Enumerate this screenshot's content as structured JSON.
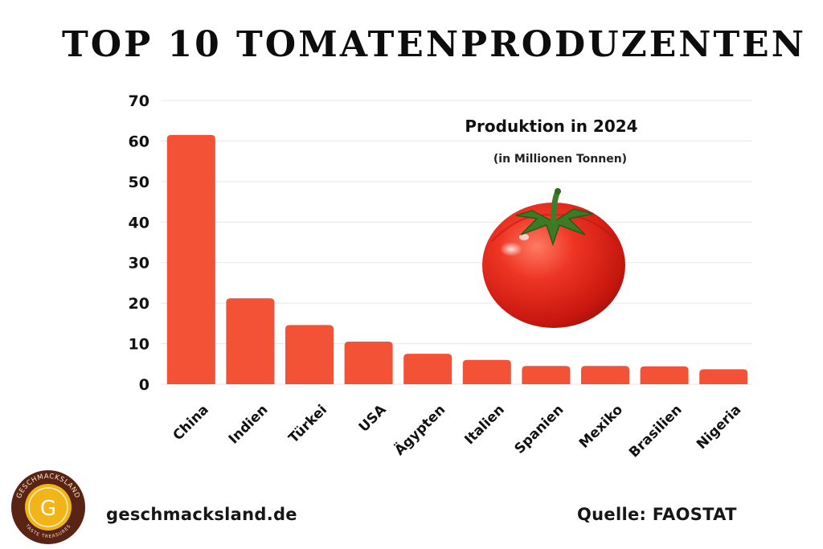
{
  "page": {
    "title": "TOP 10 TOMATENPRODUZENTEN",
    "website": "geschmacksland.de",
    "source": "Quelle: FAOSTAT",
    "logo": {
      "text_top": "GESCHMACKSLAND",
      "letter": "G",
      "text_bottom": "TASTE TREASURES"
    },
    "colors": {
      "bar": "#f45236",
      "grid": "#e7e7e7",
      "tomato": "#e0241a",
      "logo_ring": "#5a2415",
      "logo_gold": "#f2b519"
    },
    "icons": [
      "tomato-image",
      "geschmacksland-logo"
    ]
  },
  "chart_data": {
    "type": "bar",
    "title": "Produktion in 2024",
    "subtitle": "(in Millionen Tonnen)",
    "categories": [
      "China",
      "Indien",
      "Türkei",
      "USA",
      "Ägypten",
      "Italien",
      "Spanien",
      "Mexiko",
      "Brasilien",
      "Nigeria"
    ],
    "values": [
      61.5,
      21.2,
      14.6,
      10.5,
      7.5,
      6.0,
      4.5,
      4.5,
      4.4,
      3.7
    ],
    "yticks": [
      0,
      10,
      20,
      30,
      40,
      50,
      60,
      70
    ],
    "ylim": [
      0,
      70
    ],
    "grid": true,
    "legend": "none"
  }
}
